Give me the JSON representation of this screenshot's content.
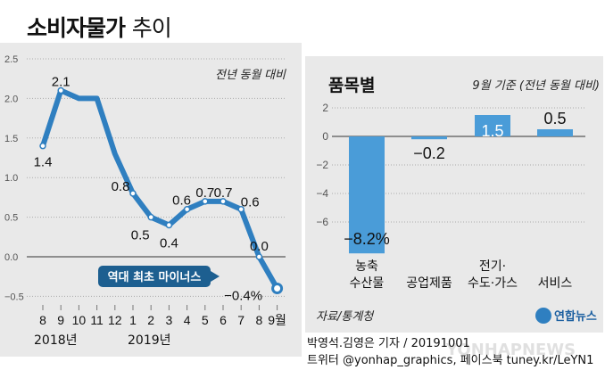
{
  "title_bold": "소비자물가",
  "title_light": "추이",
  "chart_data": [
    {
      "type": "line",
      "subtitle": "전년 동월 대비",
      "categories": [
        "8",
        "9",
        "10",
        "11",
        "12",
        "1",
        "2",
        "3",
        "4",
        "5",
        "6",
        "7",
        "8",
        "9월"
      ],
      "year_labels": [
        "2018년",
        "2019년"
      ],
      "values": [
        1.4,
        2.1,
        2.0,
        2.0,
        1.3,
        0.8,
        0.5,
        0.4,
        0.6,
        0.7,
        0.7,
        0.6,
        0.0,
        -0.4
      ],
      "data_labels": [
        "1.4",
        "2.1",
        "",
        "",
        "",
        "0.8",
        "0.5",
        "0.4",
        "0.6",
        "0.7",
        "0.7",
        "0.6",
        "0.0",
        "−0.4%"
      ],
      "yticks": [
        "2.5",
        "2.0",
        "1.5",
        "1.0",
        "0.5",
        "0.0",
        "−0.5"
      ],
      "ylim": [
        -0.5,
        2.5
      ],
      "annotation": "역대 최초 마이너스",
      "grid": true,
      "color": "#2f7fc0"
    },
    {
      "type": "bar",
      "title": "품목별",
      "subtitle": "9월 기준 (전년 동월 대비)",
      "categories": [
        [
          "농축",
          "수산물"
        ],
        [
          "공업제품"
        ],
        [
          "전기·",
          "수도·가스"
        ],
        [
          "서비스"
        ]
      ],
      "values": [
        -8.2,
        -0.2,
        1.5,
        0.5
      ],
      "data_labels": [
        "−8.2%",
        "−0.2",
        "1.5",
        "0.5"
      ],
      "yticks": [
        "2",
        "0",
        "−2",
        "−4",
        "−6"
      ],
      "ylim": [
        -8.2,
        2
      ],
      "grid": true,
      "color": "#4a9cd8"
    }
  ],
  "source": "자료/통계청",
  "logo": "연합뉴스",
  "credit_line1": "박영석.김영은 기자 / 20191001",
  "credit_line2": "트위터 @yonhap_graphics, 페이스북 tuney.kr/LeYN1",
  "watermark": "YONHAPNEWS"
}
